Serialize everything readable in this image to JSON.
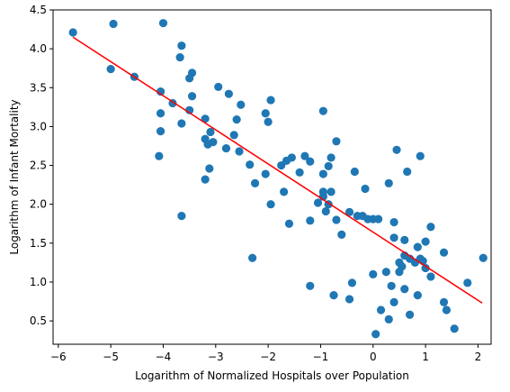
{
  "chart_data": {
    "type": "scatter",
    "title": "",
    "xlabel": "Logarithm of Normalized Hospitals over Population",
    "ylabel": "Logarithm of Infant Mortality",
    "xlim": [
      -6.1,
      2.25
    ],
    "ylim": [
      0.2,
      4.5
    ],
    "xticks": [
      -6,
      -5,
      -4,
      -3,
      -2,
      -1,
      0,
      1,
      2
    ],
    "yticks": [
      0.5,
      1.0,
      1.5,
      2.0,
      2.5,
      3.0,
      3.5,
      4.0,
      4.5
    ],
    "grid": false,
    "legend": "none",
    "colors": {
      "points": "#1f77b4",
      "fit_line": "#ff0000"
    },
    "points": [
      [
        -5.72,
        4.21
      ],
      [
        -4.95,
        4.32
      ],
      [
        -5.0,
        3.74
      ],
      [
        -4.0,
        4.33
      ],
      [
        -3.65,
        4.04
      ],
      [
        -3.68,
        3.89
      ],
      [
        -3.45,
        3.69
      ],
      [
        -3.5,
        3.62
      ],
      [
        -4.55,
        3.64
      ],
      [
        -4.05,
        3.45
      ],
      [
        -3.82,
        3.3
      ],
      [
        -4.05,
        3.17
      ],
      [
        -3.45,
        3.39
      ],
      [
        -3.5,
        3.21
      ],
      [
        -2.95,
        3.51
      ],
      [
        -2.75,
        3.42
      ],
      [
        -2.52,
        3.28
      ],
      [
        -3.65,
        3.04
      ],
      [
        -3.2,
        3.1
      ],
      [
        -2.6,
        3.09
      ],
      [
        -2.05,
        3.17
      ],
      [
        -1.95,
        3.34
      ],
      [
        -2.0,
        3.06
      ],
      [
        -4.05,
        2.94
      ],
      [
        -3.1,
        2.93
      ],
      [
        -3.2,
        2.84
      ],
      [
        -3.15,
        2.77
      ],
      [
        -3.05,
        2.8
      ],
      [
        -2.65,
        2.89
      ],
      [
        -2.8,
        2.72
      ],
      [
        -2.55,
        2.68
      ],
      [
        -4.08,
        2.62
      ],
      [
        -3.12,
        2.46
      ],
      [
        -3.2,
        2.32
      ],
      [
        -2.35,
        2.51
      ],
      [
        -1.75,
        2.5
      ],
      [
        -1.65,
        2.56
      ],
      [
        -1.55,
        2.6
      ],
      [
        -1.3,
        2.62
      ],
      [
        -1.2,
        2.55
      ],
      [
        -0.95,
        3.2
      ],
      [
        -0.7,
        2.81
      ],
      [
        -0.8,
        2.6
      ],
      [
        -0.85,
        2.49
      ],
      [
        -0.95,
        2.39
      ],
      [
        -1.4,
        2.41
      ],
      [
        -2.05,
        2.39
      ],
      [
        -2.25,
        2.27
      ],
      [
        -1.7,
        2.16
      ],
      [
        -1.95,
        2.0
      ],
      [
        -1.05,
        2.02
      ],
      [
        -0.95,
        2.16
      ],
      [
        -0.95,
        2.1
      ],
      [
        -0.8,
        2.16
      ],
      [
        -0.85,
        2.0
      ],
      [
        -0.9,
        1.91
      ],
      [
        -0.7,
        1.8
      ],
      [
        -0.6,
        1.61
      ],
      [
        -0.45,
        1.9
      ],
      [
        -0.3,
        1.85
      ],
      [
        -0.2,
        1.85
      ],
      [
        -0.15,
        2.2
      ],
      [
        -0.1,
        1.81
      ],
      [
        0.0,
        1.81
      ],
      [
        0.1,
        1.81
      ],
      [
        -0.35,
        2.42
      ],
      [
        0.3,
        2.27
      ],
      [
        0.4,
        1.77
      ],
      [
        -1.2,
        1.79
      ],
      [
        -1.6,
        1.75
      ],
      [
        -3.65,
        1.85
      ],
      [
        -2.3,
        1.31
      ],
      [
        0.45,
        2.7
      ],
      [
        0.65,
        2.42
      ],
      [
        0.9,
        2.62
      ],
      [
        0.4,
        1.57
      ],
      [
        0.6,
        1.54
      ],
      [
        0.85,
        1.45
      ],
      [
        1.0,
        1.52
      ],
      [
        1.1,
        1.71
      ],
      [
        1.35,
        1.38
      ],
      [
        0.7,
        1.3
      ],
      [
        0.6,
        1.34
      ],
      [
        0.5,
        1.25
      ],
      [
        0.55,
        1.2
      ],
      [
        0.8,
        1.25
      ],
      [
        0.95,
        1.27
      ],
      [
        1.0,
        1.18
      ],
      [
        1.1,
        1.07
      ],
      [
        0.5,
        1.13
      ],
      [
        0.35,
        0.95
      ],
      [
        0.6,
        0.91
      ],
      [
        0.85,
        0.83
      ],
      [
        0.25,
        1.13
      ],
      [
        0.0,
        1.1
      ],
      [
        0.4,
        0.74
      ],
      [
        0.7,
        0.58
      ],
      [
        0.3,
        0.52
      ],
      [
        0.15,
        0.64
      ],
      [
        0.05,
        0.33
      ],
      [
        1.35,
        0.74
      ],
      [
        1.4,
        0.64
      ],
      [
        1.55,
        0.4
      ],
      [
        1.8,
        0.99
      ],
      [
        2.1,
        1.31
      ],
      [
        -0.4,
        0.99
      ],
      [
        -0.45,
        0.78
      ],
      [
        -0.75,
        0.83
      ],
      [
        -1.2,
        0.95
      ],
      [
        0.9,
        1.3
      ]
    ],
    "fit_line": {
      "x1": -5.72,
      "y1": 4.15,
      "x2": 2.08,
      "y2": 0.73
    }
  }
}
